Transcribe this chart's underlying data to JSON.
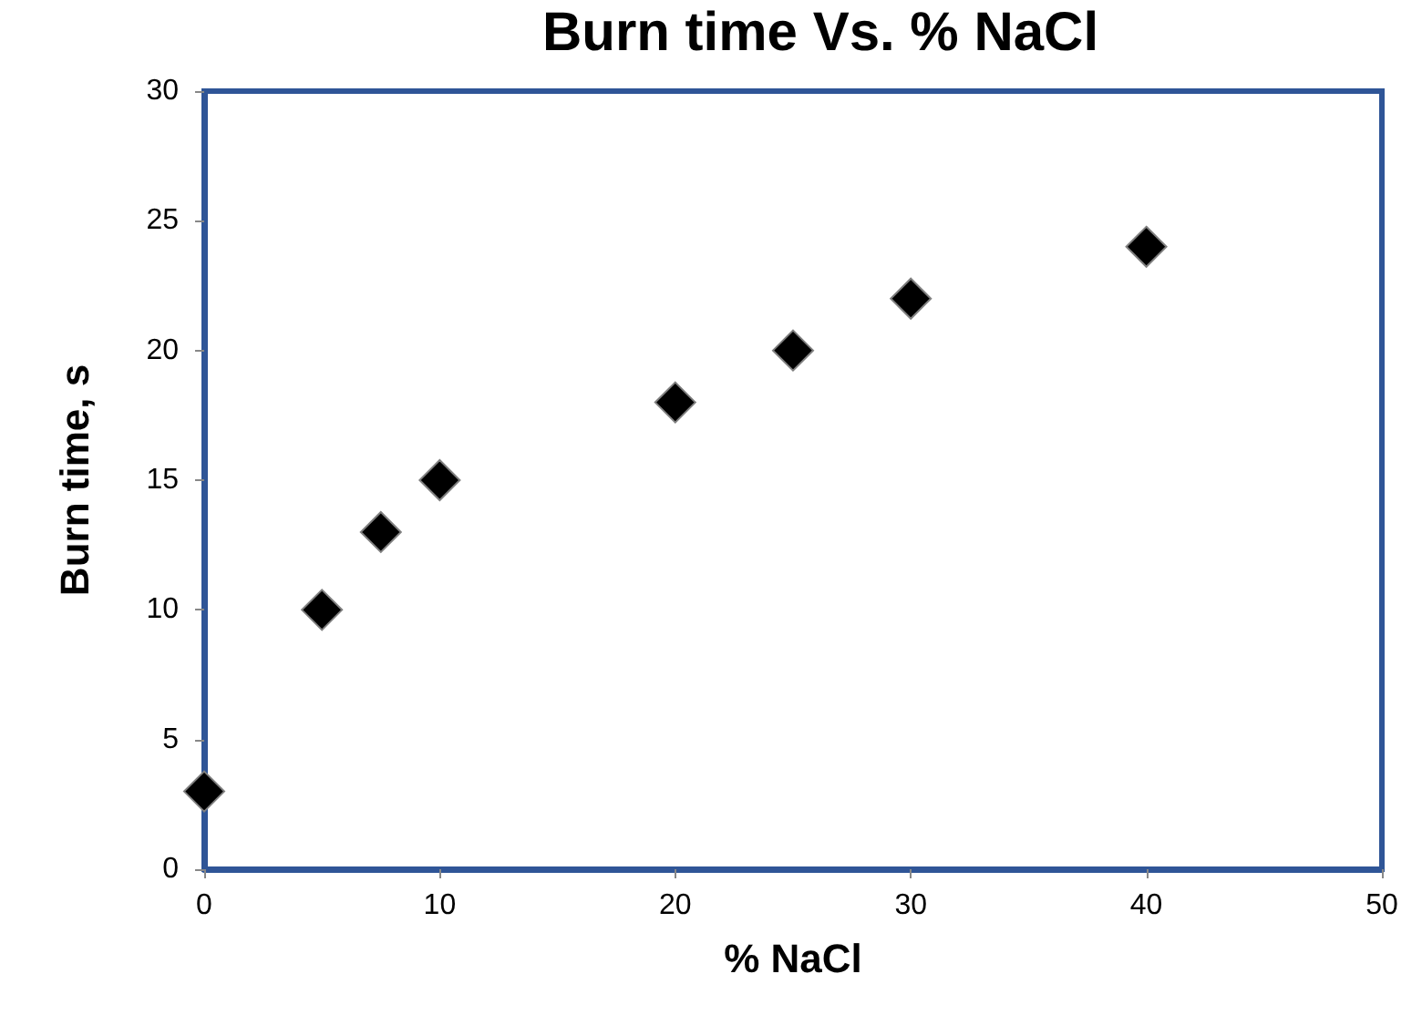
{
  "chart_data": {
    "type": "scatter",
    "title": "Burn time Vs. % NaCl",
    "xlabel": "% NaCl",
    "ylabel": "Burn time, s",
    "x": [
      0,
      5,
      7.5,
      10,
      20,
      25,
      30,
      40
    ],
    "values": [
      3,
      10,
      13,
      15,
      18,
      20,
      22,
      24
    ],
    "color": "#000000",
    "xlim": [
      0,
      50
    ],
    "xticks": [
      0,
      10,
      20,
      30,
      40,
      50
    ],
    "ylim": [
      0,
      30
    ],
    "yticks": [
      0,
      5,
      10,
      15,
      20,
      25,
      30
    ],
    "grid": false,
    "marker": "diamond"
  }
}
